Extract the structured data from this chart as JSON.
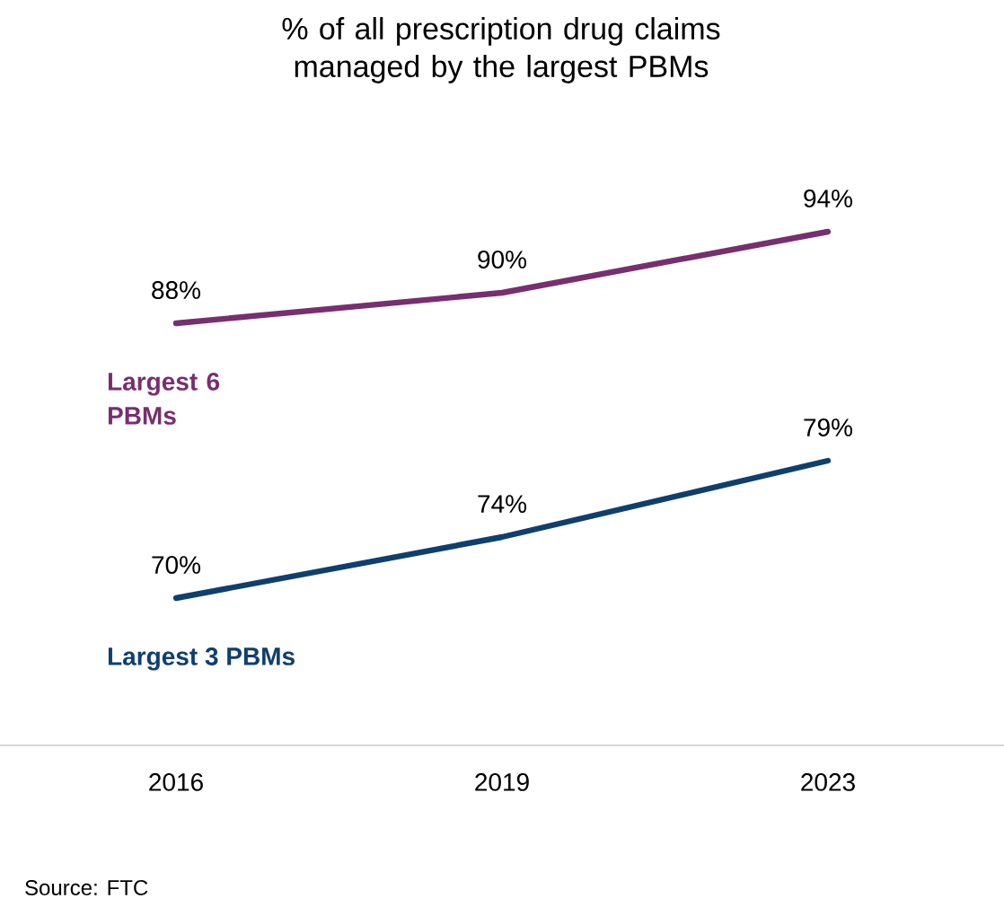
{
  "chart_data": {
    "type": "line",
    "title": "% of all prescription drug claims managed by the largest PBMs",
    "categories": [
      "2016",
      "2019",
      "2023"
    ],
    "series": [
      {
        "name": "Largest 6 PBMs",
        "color": "#772f6f",
        "values": [
          88,
          90,
          94
        ],
        "value_labels": [
          "88%",
          "90%",
          "94%"
        ]
      },
      {
        "name": "Largest 3 PBMs",
        "color": "#0f3f6e",
        "values": [
          70,
          74,
          79
        ],
        "value_labels": [
          "70%",
          "74%",
          "79%"
        ]
      }
    ],
    "tick_labels": "x",
    "marker": "none",
    "line_style": "solid",
    "annotations": [
      "Source: FTC"
    ]
  }
}
